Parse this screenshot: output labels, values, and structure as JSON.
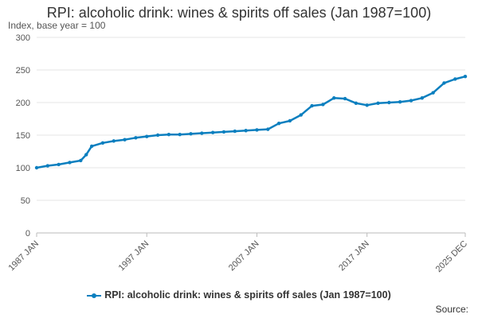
{
  "chart_data": {
    "type": "line",
    "title": "RPI: alcoholic drink: wines & spirits off sales (Jan 1987=100)",
    "subtitle": "Index, base year = 100",
    "ylim": [
      0,
      300
    ],
    "y_ticks": [
      "0",
      "50",
      "100",
      "150",
      "200",
      "250",
      "300"
    ],
    "x_tick_labels": [
      "1987 JAN",
      "1997 JAN",
      "2007 JAN",
      "2017 JAN",
      "2025 DEC"
    ],
    "grid": true,
    "legend_position": "bottom",
    "series": [
      {
        "name": "RPI: alcoholic drink: wines & spirits off sales (Jan 1987=100)",
        "color": "#0b7fbf",
        "x": [
          1987.0,
          1988.0,
          1989.0,
          1990.0,
          1991.0,
          1991.5,
          1992.0,
          1993.0,
          1994.0,
          1995.0,
          1996.0,
          1997.0,
          1998.0,
          1999.0,
          2000.0,
          2001.0,
          2002.0,
          2003.0,
          2004.0,
          2005.0,
          2006.0,
          2007.0,
          2008.0,
          2009.0,
          2010.0,
          2011.0,
          2012.0,
          2013.0,
          2014.0,
          2015.0,
          2016.0,
          2017.0,
          2018.0,
          2019.0,
          2020.0,
          2021.0,
          2022.0,
          2023.0,
          2024.0,
          2025.0,
          2025.92
        ],
        "y": [
          100,
          103,
          105,
          108,
          111,
          120,
          133,
          138,
          141,
          143,
          146,
          148,
          150,
          151,
          151,
          152,
          153,
          154,
          155,
          156,
          157,
          158,
          159,
          168,
          172,
          181,
          195,
          197,
          207,
          206,
          199,
          196,
          199,
          200,
          201,
          203,
          207,
          215,
          230,
          236,
          240
        ]
      }
    ]
  },
  "legend": {
    "label": "RPI: alcoholic drink: wines & spirits off sales (Jan 1987=100)"
  },
  "source": {
    "label": "Source:"
  }
}
